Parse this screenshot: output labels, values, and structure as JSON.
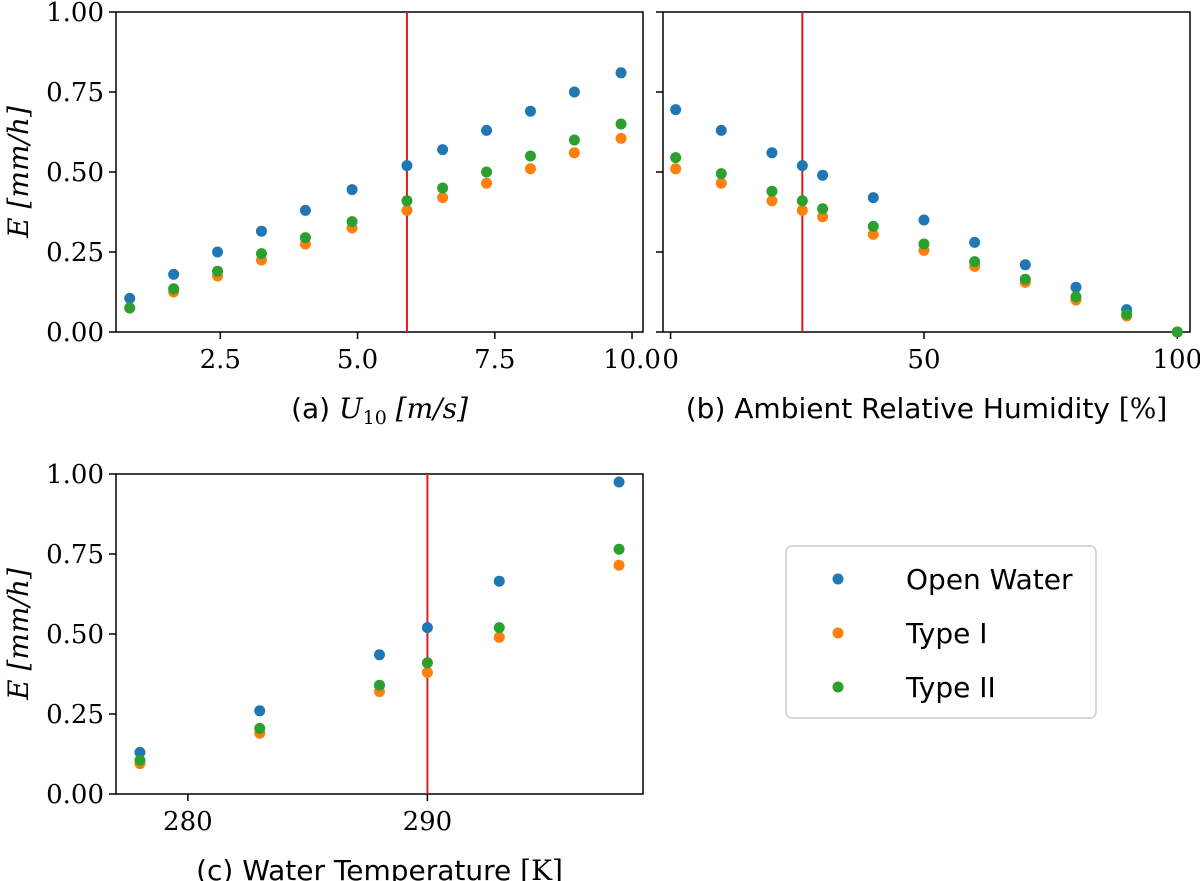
{
  "colors": {
    "open_water": "#1f77b4",
    "type_i": "#ff7f0e",
    "type_ii": "#2ca02c",
    "reference_line": "#e31a1c"
  },
  "legend": {
    "entries": [
      "Open Water",
      "Type I",
      "Type II"
    ]
  },
  "chart_data": [
    {
      "id": "a",
      "type": "scatter",
      "xlabel_prefix": "(a) ",
      "xlabel_var": "U",
      "xlabel_sub": "10",
      "xlabel_units": " [m/s]",
      "ylabel": "E [mm/h]",
      "xlim": [
        0.6,
        10.2
      ],
      "ylim": [
        0,
        1.0
      ],
      "xticks": [
        2.5,
        5.0,
        7.5,
        10.0
      ],
      "xtick_labels": [
        "2.5",
        "5.0",
        "7.5",
        "10.0"
      ],
      "yticks": [
        0,
        0.25,
        0.5,
        0.75,
        1.0
      ],
      "ytick_labels": [
        "0.00",
        "0.25",
        "0.50",
        "0.75",
        "1.00"
      ],
      "vline": 5.9,
      "x": [
        0.85,
        1.65,
        2.45,
        3.25,
        4.05,
        4.9,
        5.9,
        6.55,
        7.35,
        8.15,
        8.95,
        9.8
      ],
      "series": [
        {
          "name": "Open Water",
          "values": [
            0.105,
            0.18,
            0.25,
            0.315,
            0.38,
            0.445,
            0.52,
            0.57,
            0.63,
            0.69,
            0.75,
            0.81
          ]
        },
        {
          "name": "Type I",
          "values": [
            0.075,
            0.125,
            0.175,
            0.225,
            0.275,
            0.325,
            0.38,
            0.42,
            0.465,
            0.51,
            0.56,
            0.605
          ]
        },
        {
          "name": "Type II",
          "values": [
            0.075,
            0.135,
            0.19,
            0.245,
            0.295,
            0.345,
            0.41,
            0.45,
            0.5,
            0.55,
            0.6,
            0.65
          ]
        }
      ]
    },
    {
      "id": "b",
      "type": "scatter",
      "xlabel_prefix": "(b) Ambient Relative Humidity",
      "xlabel_var": "",
      "xlabel_sub": "",
      "xlabel_units": " [%]",
      "ylabel": "",
      "xlim": [
        -1.5,
        102.5
      ],
      "ylim": [
        0,
        1.0
      ],
      "xticks": [
        0,
        50,
        100
      ],
      "xtick_labels": [
        "0",
        "50",
        "100"
      ],
      "yticks": [
        0,
        0.25,
        0.5,
        0.75,
        1.0
      ],
      "ytick_labels": [],
      "vline": 26,
      "x": [
        1,
        10,
        20,
        26,
        30,
        40,
        50,
        60,
        70,
        80,
        90,
        100
      ],
      "series": [
        {
          "name": "Open Water",
          "values": [
            0.695,
            0.63,
            0.56,
            0.52,
            0.49,
            0.42,
            0.35,
            0.28,
            0.21,
            0.14,
            0.07,
            0.0
          ]
        },
        {
          "name": "Type I",
          "values": [
            0.51,
            0.465,
            0.41,
            0.38,
            0.36,
            0.305,
            0.255,
            0.205,
            0.155,
            0.1,
            0.05,
            0.0
          ]
        },
        {
          "name": "Type II",
          "values": [
            0.545,
            0.495,
            0.44,
            0.41,
            0.385,
            0.33,
            0.275,
            0.22,
            0.165,
            0.11,
            0.055,
            0.0
          ]
        }
      ]
    },
    {
      "id": "c",
      "type": "scatter",
      "xlabel_prefix": "(c) Water Temperature",
      "xlabel_var": "",
      "xlabel_sub": "",
      "xlabel_units": " [K]",
      "ylabel": "E [mm/h]",
      "xlim": [
        277,
        299
      ],
      "ylim": [
        0,
        1.0
      ],
      "xticks": [
        280,
        290
      ],
      "xtick_labels": [
        "280",
        "290"
      ],
      "yticks": [
        0,
        0.25,
        0.5,
        0.75,
        1.0
      ],
      "ytick_labels": [
        "0.00",
        "0.25",
        "0.50",
        "0.75",
        "1.00"
      ],
      "vline": 290,
      "x": [
        278,
        283,
        288,
        290,
        293,
        298
      ],
      "series": [
        {
          "name": "Open Water",
          "values": [
            0.13,
            0.26,
            0.435,
            0.52,
            0.665,
            0.975
          ]
        },
        {
          "name": "Type I",
          "values": [
            0.095,
            0.19,
            0.32,
            0.38,
            0.49,
            0.715
          ]
        },
        {
          "name": "Type II",
          "values": [
            0.105,
            0.205,
            0.34,
            0.41,
            0.52,
            0.765
          ]
        }
      ]
    }
  ]
}
